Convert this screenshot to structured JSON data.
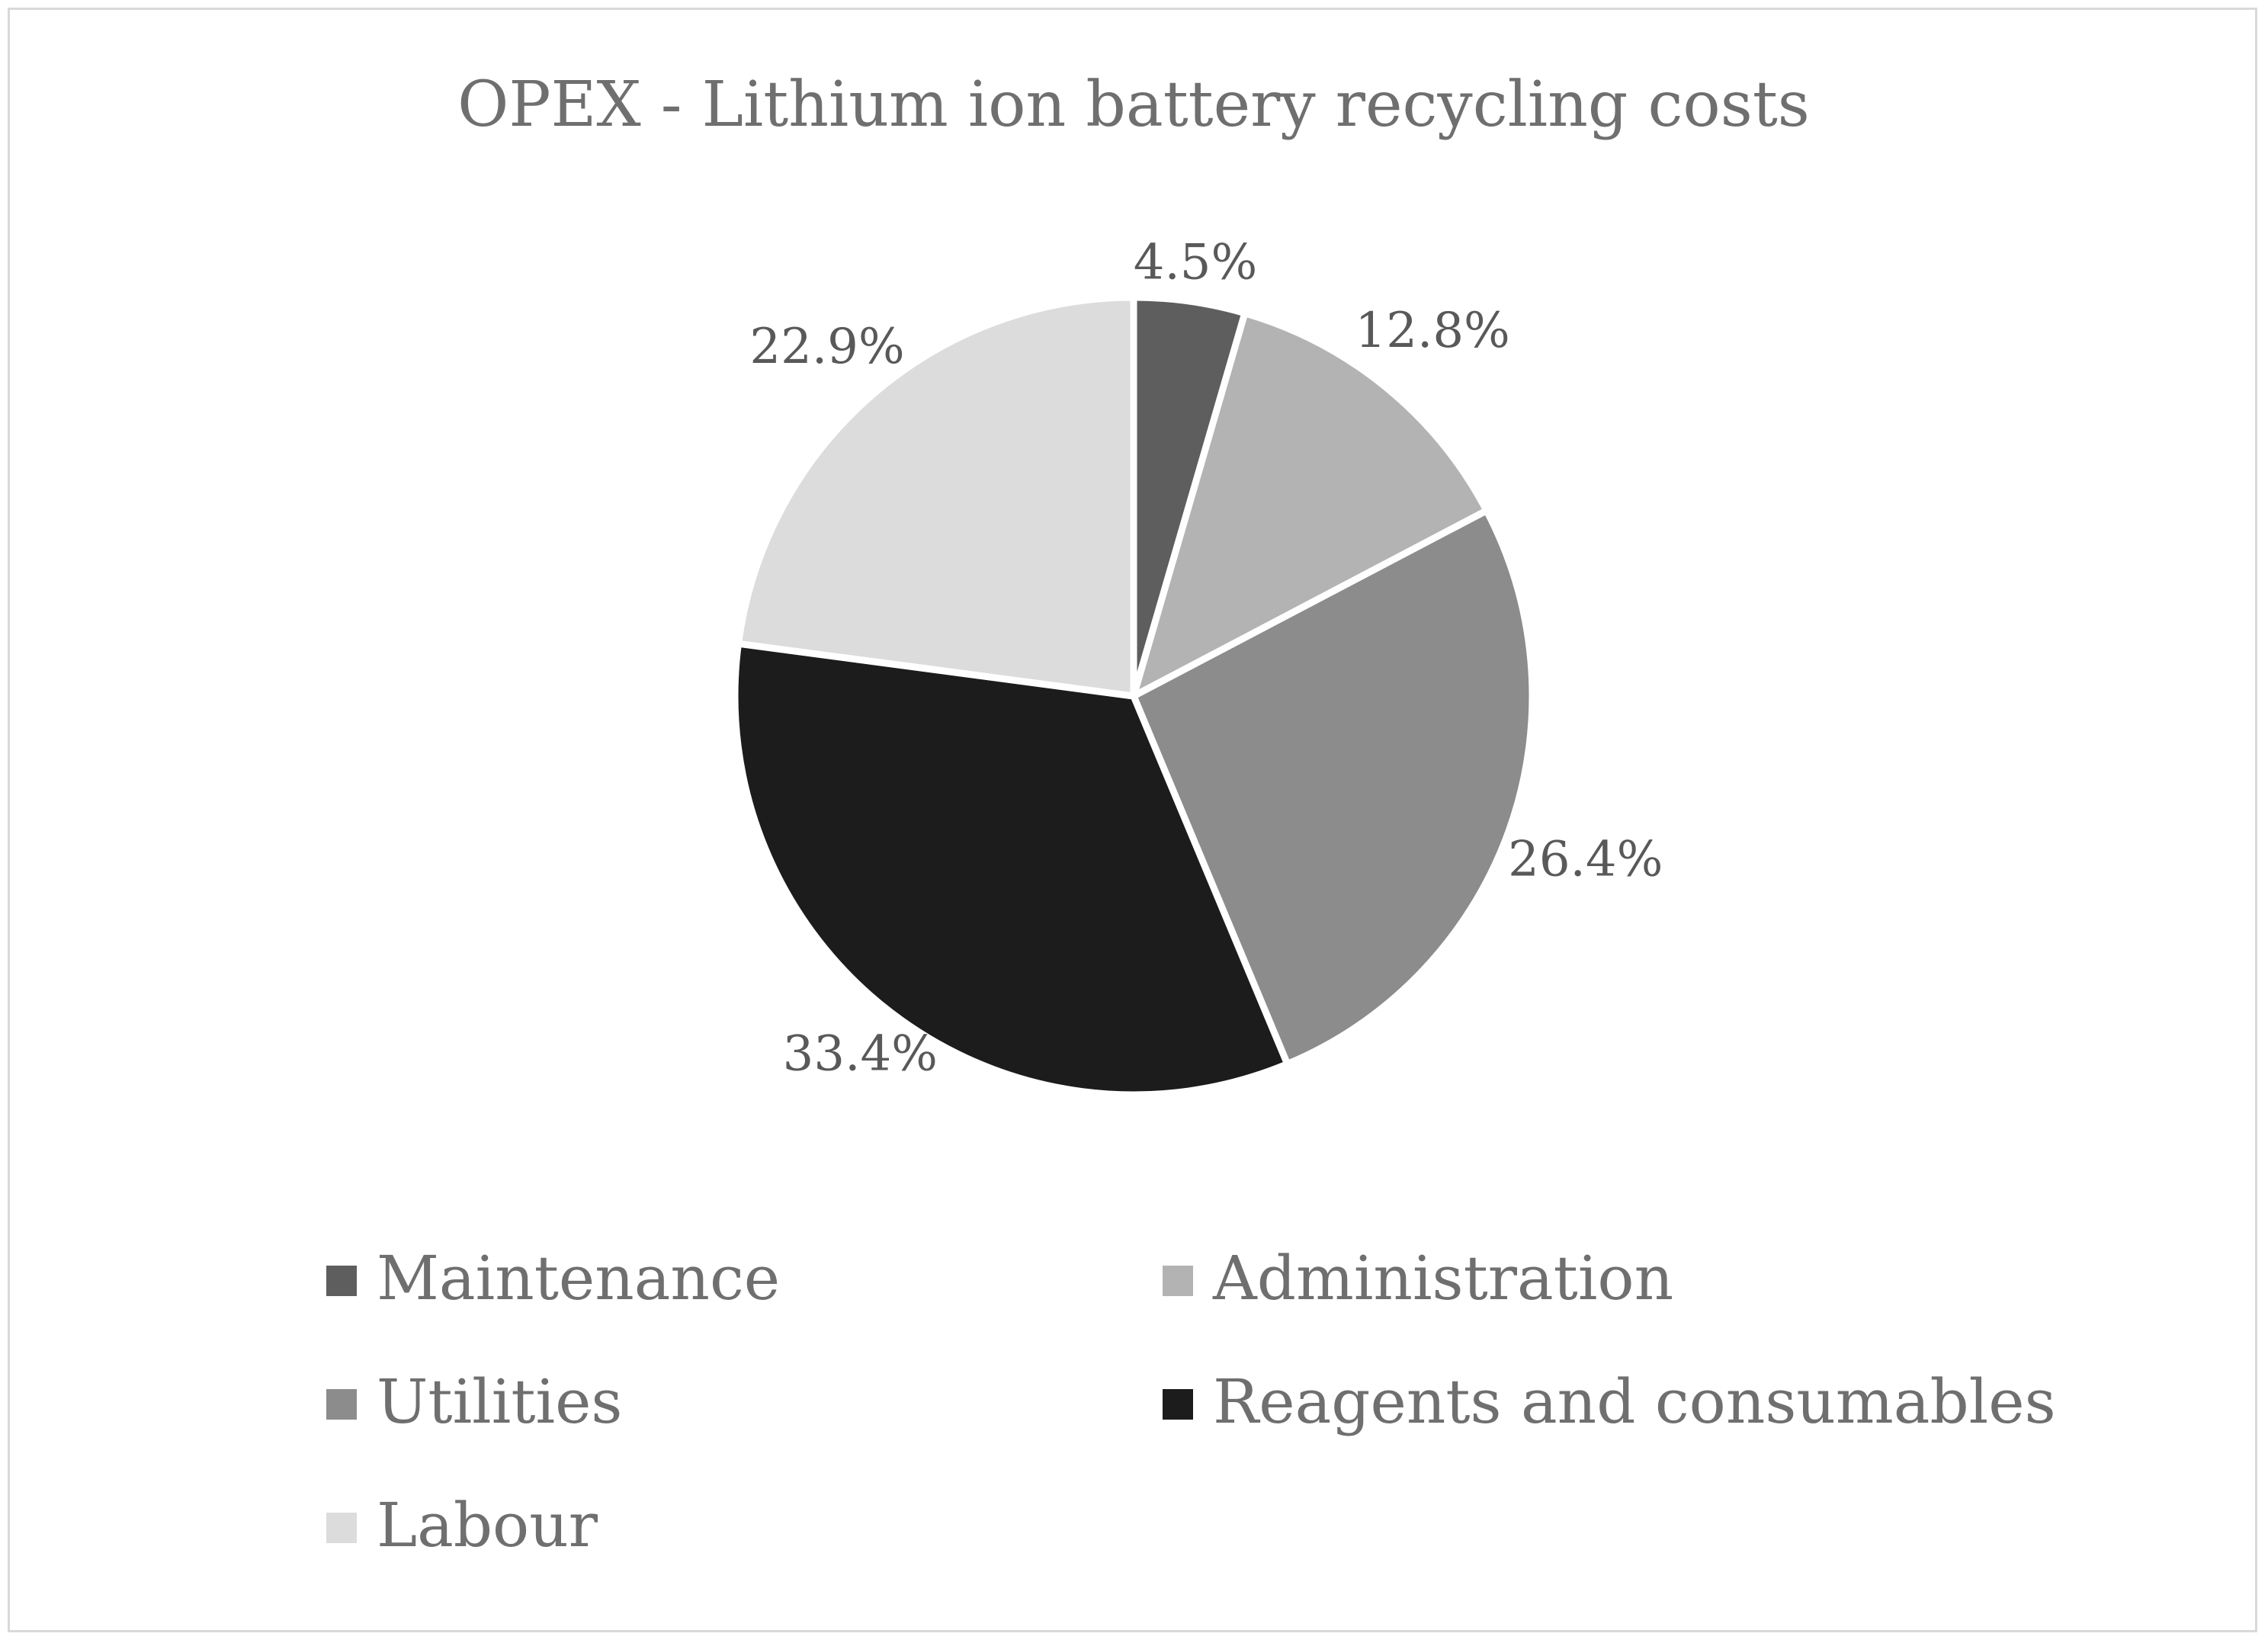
{
  "chart_data": {
    "type": "pie",
    "title": "OPEX - Lithium ion battery recycling costs",
    "unit": "%",
    "slices": [
      {
        "label": "Maintenance",
        "value": 4.5,
        "display": "4.5%",
        "color": "#5e5e5e"
      },
      {
        "label": "Administration",
        "value": 12.8,
        "display": "12.8%",
        "color": "#b3b3b3"
      },
      {
        "label": "Utilities",
        "value": 26.4,
        "display": "26.4%",
        "color": "#8c8c8c"
      },
      {
        "label": "Reagents and consumables",
        "value": 33.4,
        "display": "33.4%",
        "color": "#1c1c1c"
      },
      {
        "label": "Labour",
        "value": 22.9,
        "display": "22.9%",
        "color": "#dcdcdc"
      }
    ],
    "start_angle": "12 o'clock",
    "direction": "clockwise",
    "legend_position": "bottom"
  }
}
